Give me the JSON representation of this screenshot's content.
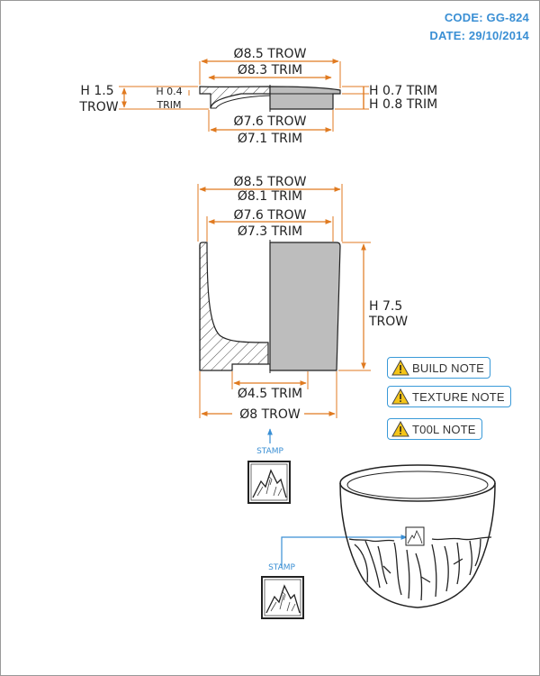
{
  "header": {
    "code": "CODE: GG-824",
    "date": "DATE: 29/10/2014"
  },
  "lid": {
    "outer_diameter": "Ø8.5 TROW",
    "outer_diameter_trim": "Ø8.3 TRIM",
    "height_total": "H 1.5",
    "height_total_unit": "TROW",
    "rim_height": "H 0.4",
    "rim_height_unit": "TRIM",
    "cap_height_trow": "H 0.7 TRIM",
    "cap_height_trim": "H 0.8 TRIM",
    "inner_diameter": "Ø7.6 TROW",
    "inner_diameter_trim": "Ø7.1 TRIM"
  },
  "pot": {
    "top_diameter": "Ø8.5 TROW",
    "top_diameter_trim": "Ø8.1 TRIM",
    "inner_diameter": "Ø7.6 TROW",
    "inner_diameter_trim": "Ø7.3 TRIM",
    "height": "H 7.5",
    "height_unit": "TROW",
    "foot_diameter": "Ø4.5 TRIM",
    "base_diameter": "Ø8 TROW"
  },
  "notes": [
    {
      "label": "BUILD NOTE",
      "icon": "warning-icon"
    },
    {
      "label": "TEXTURE NOTE",
      "icon": "warning-icon"
    },
    {
      "label": "T00L NOTE",
      "icon": "warning-icon"
    }
  ],
  "stamps": {
    "top_label": "STAMP",
    "bottom_label": "STAMP"
  },
  "colors": {
    "dimension": "#e07a20",
    "accent": "#3a8fd4",
    "fill": "#bdbdbd"
  }
}
